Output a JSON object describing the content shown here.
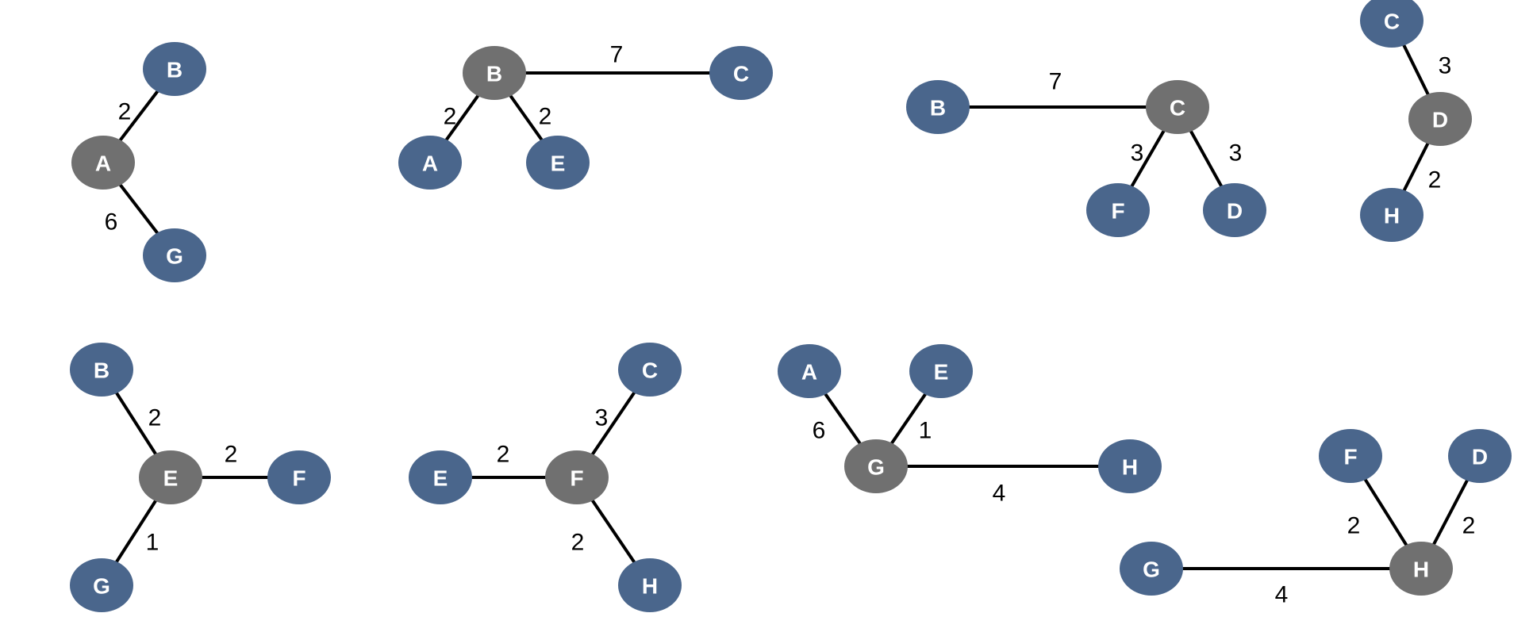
{
  "colors": {
    "neighbor_node": "#4a668c",
    "center_node": "#707070",
    "edge": "#000000",
    "background": "#ffffff"
  },
  "graphs": [
    {
      "center": "A",
      "nodes": [
        {
          "id": "A",
          "label": "A",
          "role": "center"
        },
        {
          "id": "B",
          "label": "B",
          "role": "neighbor"
        },
        {
          "id": "G",
          "label": "G",
          "role": "neighbor"
        }
      ],
      "edges": [
        {
          "from": "A",
          "to": "B",
          "weight": "2"
        },
        {
          "from": "A",
          "to": "G",
          "weight": "6"
        }
      ]
    },
    {
      "center": "B",
      "nodes": [
        {
          "id": "B",
          "label": "B",
          "role": "center"
        },
        {
          "id": "C",
          "label": "C",
          "role": "neighbor"
        },
        {
          "id": "A",
          "label": "A",
          "role": "neighbor"
        },
        {
          "id": "E",
          "label": "E",
          "role": "neighbor"
        }
      ],
      "edges": [
        {
          "from": "B",
          "to": "C",
          "weight": "7"
        },
        {
          "from": "B",
          "to": "A",
          "weight": "2"
        },
        {
          "from": "B",
          "to": "E",
          "weight": "2"
        }
      ]
    },
    {
      "center": "C",
      "nodes": [
        {
          "id": "C",
          "label": "C",
          "role": "center"
        },
        {
          "id": "B",
          "label": "B",
          "role": "neighbor"
        },
        {
          "id": "F",
          "label": "F",
          "role": "neighbor"
        },
        {
          "id": "D",
          "label": "D",
          "role": "neighbor"
        }
      ],
      "edges": [
        {
          "from": "C",
          "to": "B",
          "weight": "7"
        },
        {
          "from": "C",
          "to": "F",
          "weight": "3"
        },
        {
          "from": "C",
          "to": "D",
          "weight": "3"
        }
      ]
    },
    {
      "center": "D",
      "nodes": [
        {
          "id": "D",
          "label": "D",
          "role": "center"
        },
        {
          "id": "C",
          "label": "C",
          "role": "neighbor"
        },
        {
          "id": "H",
          "label": "H",
          "role": "neighbor"
        }
      ],
      "edges": [
        {
          "from": "D",
          "to": "C",
          "weight": "3"
        },
        {
          "from": "D",
          "to": "H",
          "weight": "2"
        }
      ]
    },
    {
      "center": "E",
      "nodes": [
        {
          "id": "E",
          "label": "E",
          "role": "center"
        },
        {
          "id": "B",
          "label": "B",
          "role": "neighbor"
        },
        {
          "id": "F",
          "label": "F",
          "role": "neighbor"
        },
        {
          "id": "G",
          "label": "G",
          "role": "neighbor"
        }
      ],
      "edges": [
        {
          "from": "E",
          "to": "B",
          "weight": "2"
        },
        {
          "from": "E",
          "to": "F",
          "weight": "2"
        },
        {
          "from": "E",
          "to": "G",
          "weight": "1"
        }
      ]
    },
    {
      "center": "F",
      "nodes": [
        {
          "id": "F",
          "label": "F",
          "role": "center"
        },
        {
          "id": "C",
          "label": "C",
          "role": "neighbor"
        },
        {
          "id": "E",
          "label": "E",
          "role": "neighbor"
        },
        {
          "id": "H",
          "label": "H",
          "role": "neighbor"
        }
      ],
      "edges": [
        {
          "from": "F",
          "to": "C",
          "weight": "3"
        },
        {
          "from": "F",
          "to": "E",
          "weight": "2"
        },
        {
          "from": "F",
          "to": "H",
          "weight": "2"
        }
      ]
    },
    {
      "center": "G",
      "nodes": [
        {
          "id": "G",
          "label": "G",
          "role": "center"
        },
        {
          "id": "A",
          "label": "A",
          "role": "neighbor"
        },
        {
          "id": "E",
          "label": "E",
          "role": "neighbor"
        },
        {
          "id": "H",
          "label": "H",
          "role": "neighbor"
        }
      ],
      "edges": [
        {
          "from": "G",
          "to": "A",
          "weight": "6"
        },
        {
          "from": "G",
          "to": "E",
          "weight": "1"
        },
        {
          "from": "G",
          "to": "H",
          "weight": "4"
        }
      ]
    },
    {
      "center": "H",
      "nodes": [
        {
          "id": "H",
          "label": "H",
          "role": "center"
        },
        {
          "id": "F",
          "label": "F",
          "role": "neighbor"
        },
        {
          "id": "D",
          "label": "D",
          "role": "neighbor"
        },
        {
          "id": "G",
          "label": "G",
          "role": "neighbor"
        }
      ],
      "edges": [
        {
          "from": "H",
          "to": "F",
          "weight": "2"
        },
        {
          "from": "H",
          "to": "D",
          "weight": "2"
        },
        {
          "from": "H",
          "to": "G",
          "weight": "4"
        }
      ]
    }
  ]
}
